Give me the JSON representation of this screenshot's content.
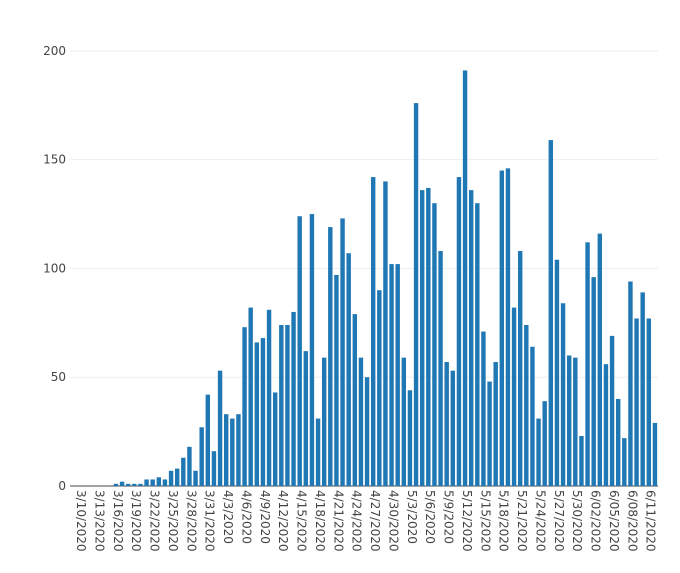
{
  "chart_data": {
    "type": "bar",
    "ylim": [
      0,
      205
    ],
    "yticks": [
      0,
      50,
      100,
      150,
      200
    ],
    "grid": true,
    "bar_color": "#1f77b4",
    "x": [
      "3/10/2020",
      "3/11/2020",
      "3/12/2020",
      "3/13/2020",
      "3/14/2020",
      "3/15/2020",
      "3/16/2020",
      "3/17/2020",
      "3/18/2020",
      "3/19/2020",
      "3/20/2020",
      "3/21/2020",
      "3/22/2020",
      "3/23/2020",
      "3/24/2020",
      "3/25/2020",
      "3/26/2020",
      "3/27/2020",
      "3/28/2020",
      "3/29/2020",
      "3/30/2020",
      "3/31/2020",
      "4/1/2020",
      "4/2/2020",
      "4/3/2020",
      "4/4/2020",
      "4/5/2020",
      "4/6/2020",
      "4/7/2020",
      "4/8/2020",
      "4/9/2020",
      "4/10/2020",
      "4/11/2020",
      "4/12/2020",
      "4/13/2020",
      "4/14/2020",
      "4/15/2020",
      "4/16/2020",
      "4/17/2020",
      "4/18/2020",
      "4/19/2020",
      "4/20/2020",
      "4/21/2020",
      "4/22/2020",
      "4/23/2020",
      "4/24/2020",
      "4/25/2020",
      "4/26/2020",
      "4/27/2020",
      "4/28/2020",
      "4/29/2020",
      "4/30/2020",
      "5/1/2020",
      "5/2/2020",
      "5/3/2020",
      "5/4/2020",
      "5/5/2020",
      "5/6/2020",
      "5/7/2020",
      "5/8/2020",
      "5/9/2020",
      "5/10/2020",
      "5/11/2020",
      "5/12/2020",
      "5/13/2020",
      "5/14/2020",
      "5/15/2020",
      "5/16/2020",
      "5/17/2020",
      "5/18/2020",
      "5/19/2020",
      "5/20/2020",
      "5/21/2020",
      "5/22/2020",
      "5/23/2020",
      "5/24/2020",
      "5/25/2020",
      "5/26/2020",
      "5/27/2020",
      "5/28/2020",
      "5/29/2020",
      "5/30/2020",
      "5/31/2020",
      "6/1/2020",
      "6/2/2020",
      "6/3/2020",
      "6/4/2020",
      "6/5/2020",
      "6/6/2020",
      "6/7/2020",
      "6/8/2020",
      "6/9/2020",
      "6/10/2020",
      "6/11/2020",
      "6/12/2020",
      "6/13/2020"
    ],
    "values": [
      0,
      0,
      0,
      0,
      0,
      0,
      0,
      1,
      2,
      1,
      1,
      1,
      3,
      3,
      4,
      3,
      7,
      8,
      13,
      18,
      7,
      27,
      42,
      16,
      53,
      33,
      31,
      33,
      73,
      82,
      66,
      68,
      81,
      43,
      74,
      74,
      80,
      124,
      62,
      125,
      31,
      59,
      119,
      97,
      123,
      107,
      79,
      59,
      50,
      142,
      90,
      140,
      102,
      102,
      59,
      44,
      176,
      136,
      137,
      130,
      108,
      57,
      53,
      142,
      191,
      136,
      130,
      71,
      48,
      57,
      145,
      146,
      82,
      108,
      74,
      64,
      31,
      39,
      159,
      104,
      84,
      60,
      59,
      23,
      112,
      96,
      116,
      56,
      69,
      40,
      22,
      94,
      77,
      89,
      77,
      29
    ],
    "x_tick_labels": [
      "3/10/2020",
      "3/13/2020",
      "3/16/2020",
      "3/19/2020",
      "3/22/2020",
      "3/25/2020",
      "3/28/2020",
      "3/31/2020",
      "4/3/2020",
      "4/6/2020",
      "4/9/2020",
      "4/12/2020",
      "4/15/2020",
      "4/18/2020",
      "4/21/2020",
      "4/24/2020",
      "4/27/2020",
      "4/30/2020",
      "5/3/2020",
      "5/6/2020",
      "5/9/2020",
      "5/12/2020",
      "5/15/2020",
      "5/18/2020",
      "5/21/2020",
      "5/24/2020",
      "5/27/2020",
      "5/30/2020",
      "6/02/2020",
      "6/05/2020",
      "6/08/2020",
      "6/11/2020"
    ]
  }
}
